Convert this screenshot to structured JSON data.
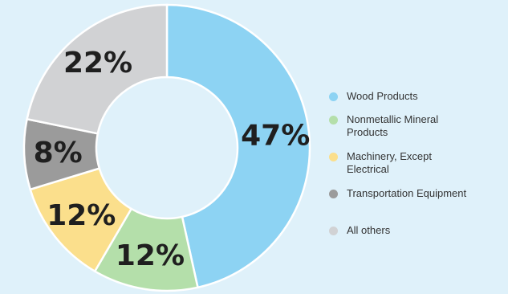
{
  "chart_data": {
    "type": "pie",
    "variant": "donut",
    "title": "",
    "categories": [
      "Wood Products",
      "Nonmetallic Mineral Products",
      "Machinery, Except Electrical",
      "Transportation Equipment",
      "All others"
    ],
    "values": [
      47,
      12,
      12,
      8,
      22
    ],
    "labels": [
      "47%",
      "12%",
      "12%",
      "8%",
      "22%"
    ],
    "colors": [
      "#8dd3f3",
      "#b4dfaa",
      "#fbdf8c",
      "#9b9b9b",
      "#d1d2d4"
    ],
    "legend": {
      "placement": "right",
      "items": [
        {
          "lines": [
            "Wood Products"
          ],
          "color": "#8dd3f3"
        },
        {
          "lines": [
            "Nonmetallic Mineral",
            "Products"
          ],
          "color": "#b4dfaa"
        },
        {
          "lines": [
            "Machinery, Except",
            "Electrical"
          ],
          "color": "#fbdf8c"
        },
        {
          "lines": [
            "Transportation Equipment"
          ],
          "color": "#9b9b9b"
        },
        {
          "lines": [
            "All others"
          ],
          "color": "#d1d2d4"
        }
      ]
    }
  },
  "background_color": "#dff1fa"
}
